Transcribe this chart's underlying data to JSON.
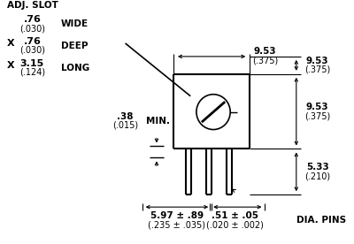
{
  "bg_color": "#ffffff",
  "line_color": "#000000",
  "text_color": "#000000",
  "title": "ADJ. SLOT",
  "labels": {
    "wide": "WIDE",
    "deep": "DEEP",
    "long": "LONG",
    "min": "MIN.",
    "dia_pins": "DIA. PINS"
  },
  "dimensions": {
    "adj_wide_top": ".76",
    "adj_wide_bot": "(.030)",
    "adj_deep_top": ".76",
    "adj_deep_bot": "(.030)",
    "adj_long_top": "3.15",
    "adj_long_bot": "(.124)",
    "min_top": ".38",
    "min_bot": "(.015)",
    "width_top": "9.53",
    "width_bot": "(.375)",
    "height_top": "9.53",
    "height_bot": "(.375)",
    "pin_len_top": "5.33",
    "pin_len_bot": "(.210)",
    "total_len_top": "5.97 ± .89",
    "total_len_bot": "(.235 ± .035)",
    "pin_dia_top": ".51 ± .05",
    "pin_dia_bot": "(.020 ± .002)"
  }
}
